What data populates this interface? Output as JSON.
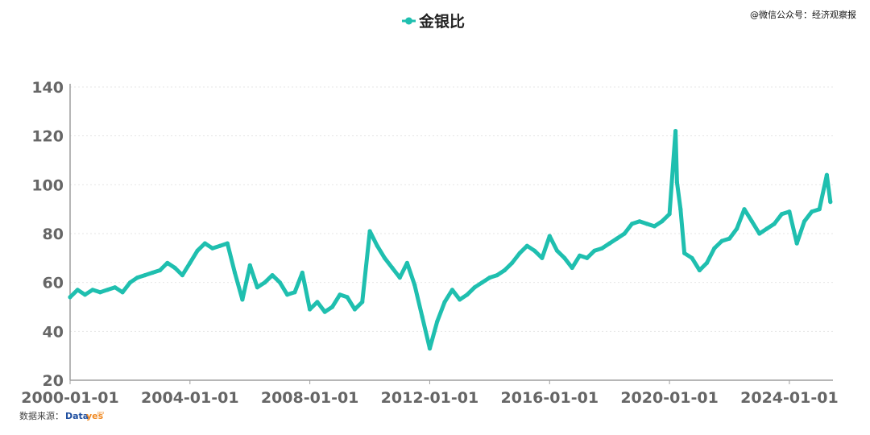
{
  "watermark": "@微信公众号：经济观察报",
  "source": {
    "label": "数据来源：",
    "logo_part1": "Data",
    "logo_part2": "yes",
    "logo_sup": "pro"
  },
  "colors": {
    "series": "#1fbfaf",
    "axis": "#9e9e9e",
    "grid": "#e6e6e6",
    "tick_text": "#666666"
  },
  "chart_data": {
    "type": "line",
    "series": [
      {
        "name": "金银比",
        "values_note_free": true,
        "x": [
          "2000-01-01",
          "2000-04-01",
          "2000-07-01",
          "2000-10-01",
          "2001-01-01",
          "2001-04-01",
          "2001-07-01",
          "2001-10-01",
          "2002-01-01",
          "2002-04-01",
          "2002-07-01",
          "2002-10-01",
          "2003-01-01",
          "2003-04-01",
          "2003-07-01",
          "2003-10-01",
          "2004-01-01",
          "2004-04-01",
          "2004-07-01",
          "2004-10-01",
          "2005-01-01",
          "2005-04-01",
          "2005-07-01",
          "2005-10-01",
          "2006-01-01",
          "2006-04-01",
          "2006-07-01",
          "2006-10-01",
          "2007-01-01",
          "2007-04-01",
          "2007-07-01",
          "2007-10-01",
          "2008-01-01",
          "2008-04-01",
          "2008-07-01",
          "2008-10-01",
          "2009-01-01",
          "2009-04-01",
          "2009-07-01",
          "2009-10-01",
          "2010-01-01",
          "2010-04-01",
          "2010-07-01",
          "2010-10-01",
          "2011-01-01",
          "2011-04-01",
          "2011-07-01",
          "2011-10-01",
          "2012-01-01",
          "2012-04-01",
          "2012-07-01",
          "2012-10-01",
          "2013-01-01",
          "2013-04-01",
          "2013-07-01",
          "2013-10-01",
          "2014-01-01",
          "2014-04-01",
          "2014-07-01",
          "2014-10-01",
          "2015-01-01",
          "2015-04-01",
          "2015-07-01",
          "2015-10-01",
          "2016-01-01",
          "2016-04-01",
          "2016-07-01",
          "2016-10-01",
          "2017-01-01",
          "2017-04-01",
          "2017-07-01",
          "2017-10-01",
          "2018-01-01",
          "2018-04-01",
          "2018-07-01",
          "2018-10-01",
          "2019-01-01",
          "2019-04-01",
          "2019-07-01",
          "2019-10-01",
          "2020-01-01",
          "2020-03-15",
          "2020-04-01",
          "2020-05-15",
          "2020-07-01",
          "2020-10-01",
          "2021-01-01",
          "2021-04-01",
          "2021-07-01",
          "2021-10-01",
          "2022-01-01",
          "2022-04-01",
          "2022-07-01",
          "2022-10-01",
          "2023-01-01",
          "2023-04-01",
          "2023-07-01",
          "2023-10-01",
          "2024-01-01",
          "2024-04-01",
          "2024-07-01",
          "2024-10-01",
          "2025-01-01",
          "2025-04-01",
          "2025-05-15"
        ],
        "values": [
          54,
          57,
          55,
          57,
          56,
          57,
          58,
          56,
          60,
          62,
          63,
          64,
          65,
          68,
          66,
          63,
          68,
          73,
          76,
          74,
          75,
          76,
          64,
          53,
          67,
          58,
          60,
          63,
          60,
          55,
          56,
          64,
          49,
          52,
          48,
          50,
          55,
          54,
          49,
          52,
          81,
          75,
          70,
          66,
          62,
          68,
          59,
          46,
          33,
          44,
          52,
          57,
          53,
          55,
          58,
          60,
          62,
          63,
          65,
          68,
          72,
          75,
          73,
          70,
          79,
          73,
          70,
          66,
          71,
          70,
          73,
          74,
          76,
          78,
          80,
          84,
          85,
          84,
          83,
          85,
          88,
          122,
          101,
          90,
          72,
          70,
          65,
          68,
          74,
          77,
          78,
          82,
          90,
          85,
          80,
          82,
          84,
          88,
          89,
          76,
          85,
          89,
          90,
          104,
          93
        ]
      }
    ],
    "xlabels": [
      "2000-01-01",
      "2004-01-01",
      "2008-01-01",
      "2012-01-01",
      "2016-01-01",
      "2020-01-01",
      "2024-01-01"
    ],
    "yticks": [
      20,
      40,
      60,
      80,
      100,
      120,
      140
    ],
    "ylim": [
      20,
      140
    ],
    "xlim": [
      "2000-01-01",
      "2025-06-15"
    ],
    "grid": "horizontal",
    "legend": "top-center"
  }
}
